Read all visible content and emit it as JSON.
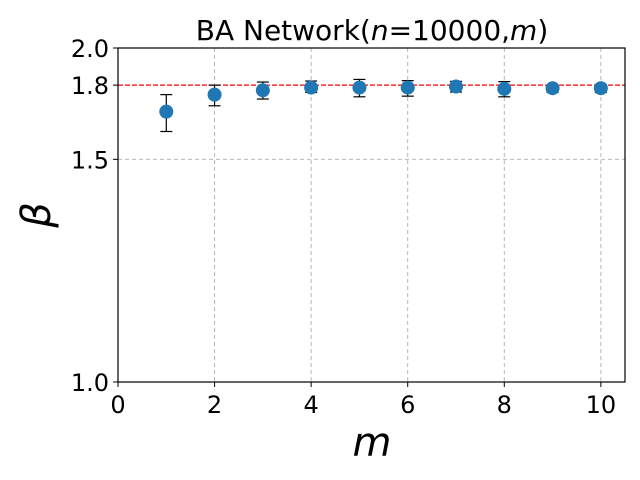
{
  "chart_data": {
    "type": "scatter",
    "title_prefix": "BA Network(",
    "title_n": "n",
    "title_eq": "=10000,",
    "title_m": "m",
    "title_suffix": ")",
    "xlabel": "m",
    "ylabel": "β",
    "xlim": [
      0,
      10.5
    ],
    "ylim": [
      1.0,
      2.0
    ],
    "xticks": [
      0,
      2,
      4,
      6,
      8,
      10
    ],
    "xtick_labels": [
      "0",
      "2",
      "4",
      "6",
      "8",
      "10"
    ],
    "yticks": [
      1.0,
      1.5,
      1.8,
      2.0
    ],
    "ytick_labels": [
      "1.0",
      "1.5",
      "1.8",
      "2.0"
    ],
    "reference_line": {
      "y": 1.8,
      "color": "#ff0000",
      "style": "dashed"
    },
    "grid": true,
    "marker_color": "#1f77b4",
    "points": [
      {
        "x": 1,
        "y": 1.68,
        "err_low": 1.6,
        "err_high": 1.755
      },
      {
        "x": 2,
        "y": 1.755,
        "err_low": 1.705,
        "err_high": 1.8
      },
      {
        "x": 3,
        "y": 1.775,
        "err_low": 1.735,
        "err_high": 1.815
      },
      {
        "x": 4,
        "y": 1.788,
        "err_low": 1.765,
        "err_high": 1.82
      },
      {
        "x": 5,
        "y": 1.788,
        "err_low": 1.745,
        "err_high": 1.828
      },
      {
        "x": 6,
        "y": 1.788,
        "err_low": 1.748,
        "err_high": 1.822
      },
      {
        "x": 7,
        "y": 1.793,
        "err_low": 1.767,
        "err_high": 1.818
      },
      {
        "x": 8,
        "y": 1.782,
        "err_low": 1.745,
        "err_high": 1.817
      },
      {
        "x": 9,
        "y": 1.785,
        "err_low": 1.765,
        "err_high": 1.8
      },
      {
        "x": 10,
        "y": 1.785,
        "err_low": 1.765,
        "err_high": 1.803
      }
    ]
  }
}
